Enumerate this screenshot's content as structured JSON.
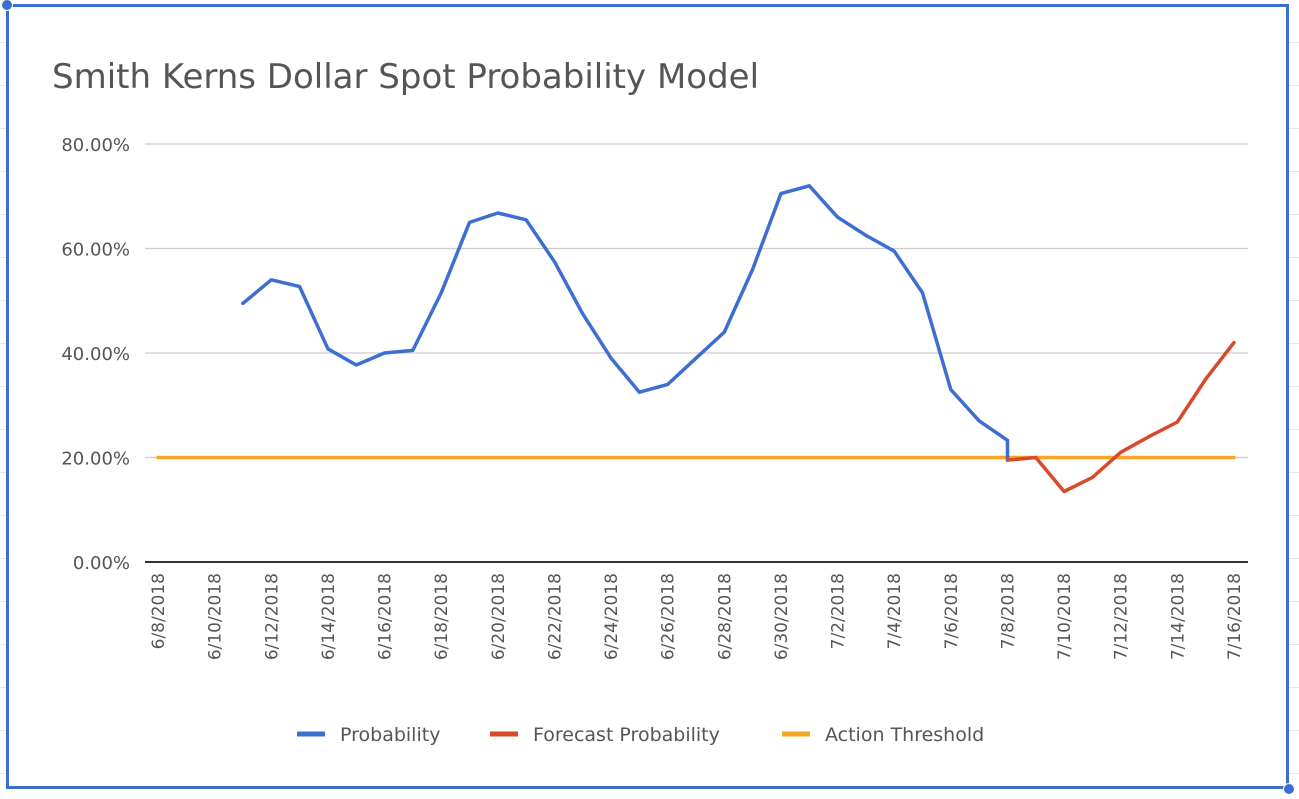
{
  "chart_data": {
    "type": "line",
    "title": "Smith Kerns Dollar Spot Probability Model",
    "xlabel": "",
    "ylabel": "",
    "ylim": [
      0,
      0.8
    ],
    "y_ticks": [
      "0.00%",
      "20.00%",
      "40.00%",
      "60.00%",
      "80.00%"
    ],
    "x_ticks": [
      "6/8/2018",
      "6/10/2018",
      "6/12/2018",
      "6/14/2018",
      "6/16/2018",
      "6/18/2018",
      "6/20/2018",
      "6/22/2018",
      "6/24/2018",
      "6/26/2018",
      "6/28/2018",
      "6/30/2018",
      "7/2/2018",
      "7/4/2018",
      "7/6/2018",
      "7/8/2018",
      "7/10/2018",
      "7/12/2018",
      "7/14/2018",
      "7/16/2018"
    ],
    "x_start": "6/8/2018",
    "x_end": "7/16/2018",
    "grid": true,
    "legend_position": "bottom",
    "series": [
      {
        "name": "Probability",
        "color": "#3c6fd1",
        "points": [
          [
            "6/11/2018",
            0.495
          ],
          [
            "6/12/2018",
            0.54
          ],
          [
            "6/13/2018",
            0.527
          ],
          [
            "6/14/2018",
            0.408
          ],
          [
            "6/15/2018",
            0.377
          ],
          [
            "6/16/2018",
            0.4
          ],
          [
            "6/17/2018",
            0.405
          ],
          [
            "6/18/2018",
            0.515
          ],
          [
            "6/19/2018",
            0.65
          ],
          [
            "6/20/2018",
            0.668
          ],
          [
            "6/21/2018",
            0.655
          ],
          [
            "6/22/2018",
            0.575
          ],
          [
            "6/23/2018",
            0.475
          ],
          [
            "6/24/2018",
            0.39
          ],
          [
            "6/25/2018",
            0.325
          ],
          [
            "6/26/2018",
            0.34
          ],
          [
            "6/27/2018",
            0.39
          ],
          [
            "6/28/2018",
            0.44
          ],
          [
            "6/29/2018",
            0.56
          ],
          [
            "6/30/2018",
            0.705
          ],
          [
            "7/1/2018",
            0.72
          ],
          [
            "7/2/2018",
            0.66
          ],
          [
            "7/3/2018",
            0.625
          ],
          [
            "7/4/2018",
            0.595
          ],
          [
            "7/5/2018",
            0.515
          ],
          [
            "7/6/2018",
            0.33
          ],
          [
            "7/7/2018",
            0.27
          ],
          [
            "7/8/2018",
            0.233
          ],
          [
            "7/8/2018",
            0.195
          ]
        ]
      },
      {
        "name": "Forecast Probability",
        "color": "#d84a2a",
        "points": [
          [
            "7/8/2018",
            0.195
          ],
          [
            "7/9/2018",
            0.2
          ],
          [
            "7/10/2018",
            0.135
          ],
          [
            "7/11/2018",
            0.162
          ],
          [
            "7/12/2018",
            0.21
          ],
          [
            "7/13/2018",
            0.24
          ],
          [
            "7/14/2018",
            0.268
          ],
          [
            "7/15/2018",
            0.35
          ],
          [
            "7/16/2018",
            0.42
          ]
        ]
      },
      {
        "name": "Action Threshold",
        "color": "#f5a623",
        "points": [
          [
            "6/8/2018",
            0.2
          ],
          [
            "7/16/2018",
            0.2
          ]
        ]
      }
    ]
  }
}
